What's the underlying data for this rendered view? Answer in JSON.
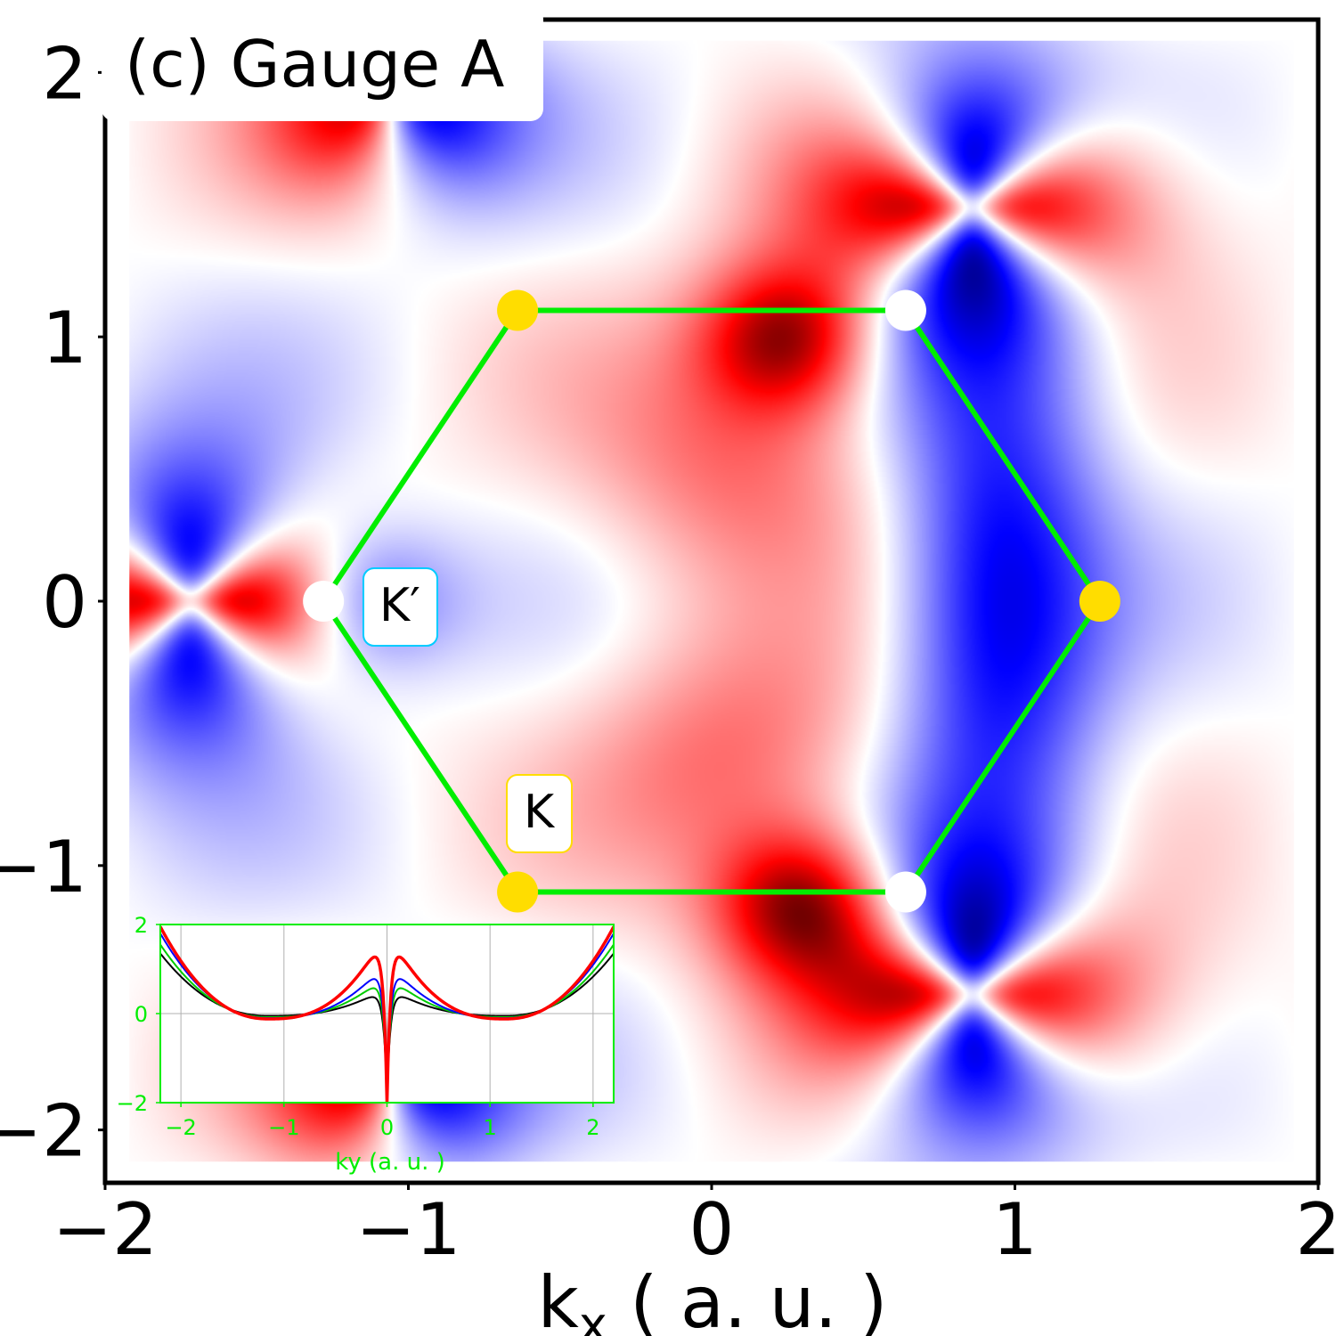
{
  "chart_data": {
    "type": "heatmap",
    "panel_label": "(c) Gauge A",
    "xlabel_main": "k",
    "xlabel_sub": "x",
    "xlabel_unit": " ( a. u. )",
    "xlim": [
      -2,
      2
    ],
    "ylim": [
      -2.2,
      2.2
    ],
    "x_ticks": [
      -2,
      -1,
      0,
      1,
      2
    ],
    "x_tick_labels": [
      "−2",
      "−1",
      "0",
      "1",
      "2"
    ],
    "y_ticks": [
      -2,
      -1,
      0,
      1,
      2
    ],
    "y_tick_labels": [
      "−2",
      "−1",
      "0",
      "1",
      "2"
    ],
    "colormap": "bwr",
    "colors": {
      "negative": "#0000ff",
      "zero": "#ffffff",
      "positive": "#ff0000",
      "extreme": "#000000"
    },
    "brillouin_zone": {
      "line_color": "#00ee00",
      "vertices": [
        [
          -1.28,
          0
        ],
        [
          -0.64,
          1.1
        ],
        [
          0.64,
          1.1
        ],
        [
          1.28,
          0
        ],
        [
          0.64,
          -1.1
        ],
        [
          -0.64,
          -1.1
        ]
      ]
    },
    "k_points": [
      {
        "label": "K",
        "x": -0.64,
        "y": 1.1,
        "color": "#ffdd00"
      },
      {
        "label": "K",
        "x": 1.28,
        "y": 0,
        "color": "#ffdd00"
      },
      {
        "label": "K",
        "x": -0.64,
        "y": -1.1,
        "color": "#ffdd00"
      },
      {
        "label": "K′",
        "x": -1.28,
        "y": 0,
        "color": "#ffffff"
      },
      {
        "label": "K′",
        "x": 0.64,
        "y": 1.1,
        "color": "#ffffff"
      },
      {
        "label": "K′",
        "x": 0.64,
        "y": -1.1,
        "color": "#ffffff"
      }
    ],
    "annotations": [
      {
        "text": "K′",
        "border_color": "#00ccff"
      },
      {
        "text": "K",
        "border_color": "#ffdd00"
      }
    ],
    "inset": {
      "type": "line",
      "xlabel": "ky (a. u. )",
      "xlim": [
        -2.2,
        2.2
      ],
      "ylim": [
        -2,
        2
      ],
      "x_ticks": [
        -2,
        -1,
        0,
        1,
        2
      ],
      "x_tick_labels": [
        "−2",
        "−1",
        "0",
        "1",
        "2"
      ],
      "y_ticks": [
        -2,
        0,
        2
      ],
      "y_tick_labels": [
        "−2",
        "0",
        "2"
      ],
      "grid": true,
      "series": [
        {
          "color": "#000000",
          "edge": 1.35,
          "peak": 0.6,
          "dip": -1.8,
          "minimum": -0.05
        },
        {
          "color": "#00cc00",
          "edge": 1.55,
          "peak": 0.9,
          "dip": -1.9,
          "minimum": -0.08
        },
        {
          "color": "#0000ff",
          "edge": 1.8,
          "peak": 1.2,
          "dip": -1.95,
          "minimum": -0.1
        },
        {
          "color": "#ff0000",
          "edge": 1.95,
          "peak": 1.9,
          "dip": -2.0,
          "minimum": -0.12
        }
      ]
    }
  }
}
